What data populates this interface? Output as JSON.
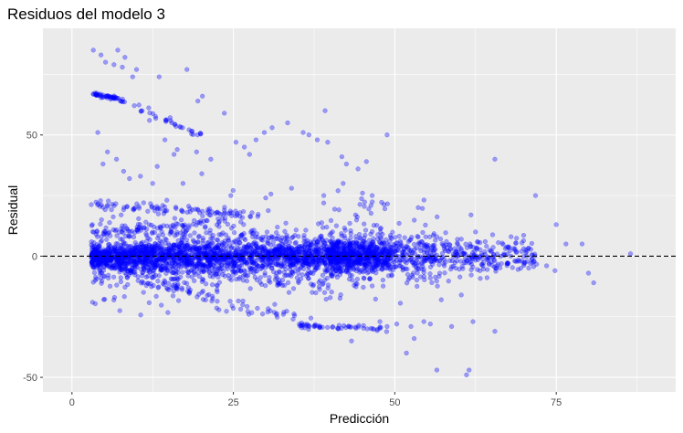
{
  "chart_data": {
    "type": "scatter",
    "title": "Residuos del modelo 3",
    "xlabel": "Predicción",
    "ylabel": "Residual",
    "xlim": [
      -4.5,
      93.5
    ],
    "ylim": [
      -56,
      94
    ],
    "x_ticks": [
      0,
      25,
      50,
      75
    ],
    "x_tick_labels": [
      "0",
      "25",
      "50",
      "75"
    ],
    "y_ticks": [
      -50,
      0,
      50
    ],
    "y_tick_labels": [
      "-50",
      "0",
      "50"
    ],
    "grid": true,
    "reference_line": {
      "y": 0,
      "style": "dashed",
      "color": "#000000"
    },
    "point_color": "#0000ff",
    "point_alpha": 0.35,
    "background": "#ebebeb",
    "points_outliers": [
      [
        3.3,
        85
      ],
      [
        4.5,
        83
      ],
      [
        5.2,
        80
      ],
      [
        6.5,
        79
      ],
      [
        7.1,
        85
      ],
      [
        7.8,
        78
      ],
      [
        8.2,
        82
      ],
      [
        9.4,
        74
      ],
      [
        10.0,
        77
      ],
      [
        13.5,
        74
      ],
      [
        17.8,
        77
      ],
      [
        19.5,
        64
      ],
      [
        20.2,
        66
      ],
      [
        23.6,
        59
      ],
      [
        33.4,
        55
      ],
      [
        39.2,
        60
      ],
      [
        48.8,
        50
      ],
      [
        65.5,
        40
      ],
      [
        35.8,
        51
      ],
      [
        36.7,
        50
      ],
      [
        38.0,
        48
      ],
      [
        39.6,
        47
      ],
      [
        41.8,
        41
      ],
      [
        42.5,
        38
      ],
      [
        44.3,
        36
      ],
      [
        45.6,
        39
      ],
      [
        42.0,
        30
      ],
      [
        31.0,
        53
      ],
      [
        29.8,
        51
      ],
      [
        28.5,
        48
      ],
      [
        26.7,
        45
      ],
      [
        25.4,
        47
      ],
      [
        27.5,
        42
      ],
      [
        21.5,
        40
      ],
      [
        19.3,
        43
      ],
      [
        20.1,
        34
      ],
      [
        15.8,
        42
      ],
      [
        12.5,
        30
      ],
      [
        10.6,
        33
      ],
      [
        8.9,
        32
      ],
      [
        6.9,
        40
      ],
      [
        5.5,
        43
      ],
      [
        4.0,
        51
      ],
      [
        4.8,
        38
      ],
      [
        8.0,
        35
      ],
      [
        14.4,
        48
      ],
      [
        16.3,
        44
      ],
      [
        12.0,
        56
      ],
      [
        13.2,
        37
      ],
      [
        17.2,
        30
      ],
      [
        11.1,
        22
      ],
      [
        24.6,
        25
      ],
      [
        45.0,
        26
      ],
      [
        46.5,
        25
      ],
      [
        41.2,
        27
      ],
      [
        39.0,
        25
      ],
      [
        34.0,
        28
      ],
      [
        30.0,
        24
      ],
      [
        71.8,
        25
      ],
      [
        61.8,
        17
      ],
      [
        75.0,
        13
      ],
      [
        68.0,
        8
      ],
      [
        76.5,
        5
      ],
      [
        79.0,
        5
      ],
      [
        86.5,
        1
      ],
      [
        80.8,
        -11
      ],
      [
        80.0,
        -7
      ],
      [
        74.8,
        -6
      ],
      [
        73.5,
        -4
      ],
      [
        71.0,
        -3
      ],
      [
        69.5,
        -5
      ],
      [
        65.0,
        2
      ],
      [
        64.0,
        6
      ],
      [
        63.2,
        -6
      ],
      [
        62.5,
        10
      ],
      [
        60.3,
        7
      ],
      [
        58.0,
        6
      ],
      [
        56.5,
        8
      ],
      [
        55.0,
        4
      ],
      [
        55.5,
        -9
      ],
      [
        57.2,
        -18
      ],
      [
        60.3,
        -16
      ],
      [
        58.8,
        -29
      ],
      [
        62.1,
        -27
      ],
      [
        65.5,
        -31
      ],
      [
        61.5,
        -47
      ],
      [
        61.1,
        -49
      ],
      [
        56.5,
        -47
      ],
      [
        51.8,
        -40
      ],
      [
        53.0,
        -34
      ],
      [
        52.5,
        -29
      ],
      [
        54.5,
        -27
      ],
      [
        55.5,
        -28
      ],
      [
        50.3,
        -28
      ],
      [
        48.8,
        -29
      ],
      [
        47.7,
        -27
      ],
      [
        43.3,
        -35
      ]
    ]
  }
}
